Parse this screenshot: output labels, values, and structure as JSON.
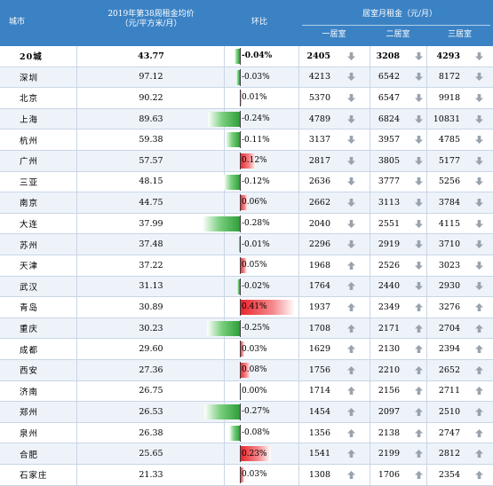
{
  "header": {
    "city": "城市",
    "price": "2019年第38周租金均价\n（元/平方米/月）",
    "ratio": "环比",
    "room_group": "居室月租金（元/月）",
    "r1": "一居室",
    "r2": "二居室",
    "r3": "三居室"
  },
  "colors": {
    "header_bg": "#3b82c4",
    "up_bar": "#2f9e3a",
    "down_bar": "#e8232b"
  },
  "rows": [
    {
      "city": "20城",
      "price": "43.77",
      "change": "-0.04%",
      "change_value": -0.04,
      "r1": "2405",
      "r1_dir": "down",
      "r2": "3208",
      "r2_dir": "down",
      "r3": "4293",
      "r3_dir": "down",
      "bold": true
    },
    {
      "city": "深圳",
      "price": "97.12",
      "change": "-0.03%",
      "change_value": -0.03,
      "r1": "4213",
      "r1_dir": "down",
      "r2": "6542",
      "r2_dir": "down",
      "r3": "8172",
      "r3_dir": "down"
    },
    {
      "city": "北京",
      "price": "90.22",
      "change": "0.01%",
      "change_value": 0.01,
      "r1": "5370",
      "r1_dir": "down",
      "r2": "6547",
      "r2_dir": "down",
      "r3": "9918",
      "r3_dir": "down"
    },
    {
      "city": "上海",
      "price": "89.63",
      "change": "-0.24%",
      "change_value": -0.24,
      "r1": "4789",
      "r1_dir": "down",
      "r2": "6824",
      "r2_dir": "down",
      "r3": "10831",
      "r3_dir": "down"
    },
    {
      "city": "杭州",
      "price": "59.38",
      "change": "-0.11%",
      "change_value": -0.11,
      "r1": "3137",
      "r1_dir": "down",
      "r2": "3957",
      "r2_dir": "down",
      "r3": "4785",
      "r3_dir": "down"
    },
    {
      "city": "广州",
      "price": "57.57",
      "change": "0.12%",
      "change_value": 0.12,
      "r1": "2817",
      "r1_dir": "down",
      "r2": "3805",
      "r2_dir": "down",
      "r3": "5177",
      "r3_dir": "down"
    },
    {
      "city": "三亚",
      "price": "48.15",
      "change": "-0.12%",
      "change_value": -0.12,
      "r1": "2636",
      "r1_dir": "down",
      "r2": "3777",
      "r2_dir": "down",
      "r3": "5256",
      "r3_dir": "down"
    },
    {
      "city": "南京",
      "price": "44.75",
      "change": "0.06%",
      "change_value": 0.06,
      "r1": "2662",
      "r1_dir": "down",
      "r2": "3113",
      "r2_dir": "down",
      "r3": "3784",
      "r3_dir": "down"
    },
    {
      "city": "大连",
      "price": "37.99",
      "change": "-0.28%",
      "change_value": -0.28,
      "r1": "2040",
      "r1_dir": "down",
      "r2": "2551",
      "r2_dir": "down",
      "r3": "4115",
      "r3_dir": "down"
    },
    {
      "city": "苏州",
      "price": "37.48",
      "change": "-0.01%",
      "change_value": -0.01,
      "r1": "2296",
      "r1_dir": "down",
      "r2": "2919",
      "r2_dir": "down",
      "r3": "3710",
      "r3_dir": "down"
    },
    {
      "city": "天津",
      "price": "37.22",
      "change": "0.05%",
      "change_value": 0.05,
      "r1": "1968",
      "r1_dir": "up",
      "r2": "2526",
      "r2_dir": "down",
      "r3": "3023",
      "r3_dir": "down"
    },
    {
      "city": "武汉",
      "price": "31.13",
      "change": "-0.02%",
      "change_value": -0.02,
      "r1": "1764",
      "r1_dir": "up",
      "r2": "2440",
      "r2_dir": "down",
      "r3": "2930",
      "r3_dir": "down"
    },
    {
      "city": "青岛",
      "price": "30.89",
      "change": "0.41%",
      "change_value": 0.41,
      "r1": "1937",
      "r1_dir": "up",
      "r2": "2349",
      "r2_dir": "up",
      "r3": "3276",
      "r3_dir": "up"
    },
    {
      "city": "重庆",
      "price": "30.23",
      "change": "-0.25%",
      "change_value": -0.25,
      "r1": "1708",
      "r1_dir": "up",
      "r2": "2171",
      "r2_dir": "up",
      "r3": "2704",
      "r3_dir": "up"
    },
    {
      "city": "成都",
      "price": "29.60",
      "change": "0.03%",
      "change_value": 0.03,
      "r1": "1629",
      "r1_dir": "up",
      "r2": "2130",
      "r2_dir": "up",
      "r3": "2394",
      "r3_dir": "up"
    },
    {
      "city": "西安",
      "price": "27.36",
      "change": "0.08%",
      "change_value": 0.08,
      "r1": "1756",
      "r1_dir": "up",
      "r2": "2210",
      "r2_dir": "up",
      "r3": "2652",
      "r3_dir": "up"
    },
    {
      "city": "济南",
      "price": "26.75",
      "change": "0.00%",
      "change_value": 0.0,
      "r1": "1714",
      "r1_dir": "up",
      "r2": "2156",
      "r2_dir": "up",
      "r3": "2711",
      "r3_dir": "up"
    },
    {
      "city": "郑州",
      "price": "26.53",
      "change": "-0.27%",
      "change_value": -0.27,
      "r1": "1454",
      "r1_dir": "up",
      "r2": "2097",
      "r2_dir": "up",
      "r3": "2510",
      "r3_dir": "up"
    },
    {
      "city": "泉州",
      "price": "26.38",
      "change": "-0.08%",
      "change_value": -0.08,
      "r1": "1356",
      "r1_dir": "up",
      "r2": "2138",
      "r2_dir": "up",
      "r3": "2747",
      "r3_dir": "up"
    },
    {
      "city": "合肥",
      "price": "25.65",
      "change": "0.23%",
      "change_value": 0.23,
      "r1": "1541",
      "r1_dir": "up",
      "r2": "2199",
      "r2_dir": "up",
      "r3": "2812",
      "r3_dir": "up"
    },
    {
      "city": "石家庄",
      "price": "21.33",
      "change": "0.03%",
      "change_value": 0.03,
      "r1": "1308",
      "r1_dir": "up",
      "r2": "1706",
      "r2_dir": "up",
      "r3": "2354",
      "r3_dir": "up"
    }
  ]
}
